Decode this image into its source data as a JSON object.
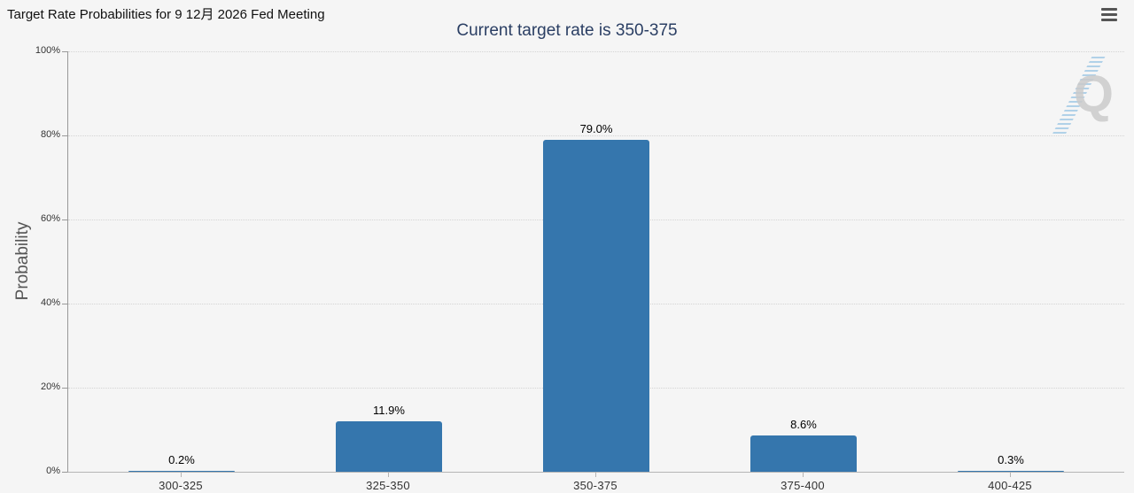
{
  "page": {
    "title": "Target Rate Probabilities for 9 12月 2026 Fed Meeting"
  },
  "menu": {
    "icon": "hamburger-icon"
  },
  "watermark": {
    "letter": "Q"
  },
  "chart_data": {
    "type": "bar",
    "title": "Current target rate is 350-375",
    "categories": [
      "300-325",
      "325-350",
      "350-375",
      "375-400",
      "400-425"
    ],
    "values": [
      0.2,
      11.9,
      79.0,
      8.6,
      0.3
    ],
    "data_labels": [
      "0.2%",
      "11.9%",
      "79.0%",
      "8.6%",
      "0.3%"
    ],
    "xlabel": "",
    "ylabel": "Probability",
    "ylim": [
      0,
      100
    ],
    "yticks": [
      {
        "label": "0%",
        "value": 0
      },
      {
        "label": "20%",
        "value": 20
      },
      {
        "label": "40%",
        "value": 40
      },
      {
        "label": "60%",
        "value": 60
      },
      {
        "label": "80%",
        "value": 80
      },
      {
        "label": "100%",
        "value": 100
      }
    ],
    "grid": "dotted-horizontal",
    "legend": "none",
    "colors": {
      "bar": "#3576ad",
      "chart_title": "#2a3e63",
      "page_title": "#111111",
      "axis_text": "#333333",
      "background": "#f5f5f5"
    }
  }
}
